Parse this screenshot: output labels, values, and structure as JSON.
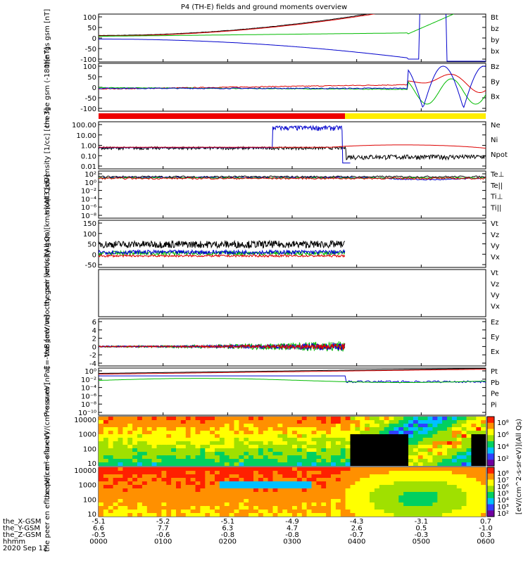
{
  "chart_data": {
    "type": "line",
    "title": "P4 (TH-E) fields and ground moments overview",
    "date_label": "2020 Sep 12",
    "x_ticks": [
      "0000",
      "0100",
      "0200",
      "0300",
      "0400",
      "0500",
      "0600"
    ],
    "bottom_rows": [
      {
        "label": "the_X-GSM",
        "values": [
          "-5.1",
          "-5.2",
          "-5.1",
          "-4.9",
          "-4.3",
          "-3.1",
          "0.7"
        ]
      },
      {
        "label": "the_Y-GSM",
        "values": [
          "6.6",
          "7.7",
          "6.3",
          "4.7",
          "2.6",
          "0.5",
          "-1.0"
        ]
      },
      {
        "label": "the_Z-GSM",
        "values": [
          "-0.5",
          "-0.6",
          "-0.8",
          "-0.8",
          "-0.7",
          "-0.3",
          "0.3"
        ]
      },
      {
        "label": "hhmm",
        "values": [
          "0000",
          "0100",
          "0200",
          "0300",
          "0400",
          "0500",
          "0600"
        ]
      }
    ],
    "panels": [
      {
        "id": "fgs",
        "ylabel": "the fgs gsm [nT]",
        "yticks": [
          "100",
          "50",
          "0",
          "-50",
          "-100"
        ],
        "legend": [
          {
            "name": "Bt",
            "color": "#000000"
          },
          {
            "name": "bz",
            "color": "#dd0000"
          },
          {
            "name": "by",
            "color": "#00bb00"
          },
          {
            "name": "bx",
            "color": "#0000cc"
          }
        ]
      },
      {
        "id": "fge",
        "ylabel": "the fge gsm (-180)[nT]",
        "yticks": [
          "100",
          "50",
          "0",
          "-50",
          "-100"
        ],
        "legend": [
          {
            "name": "Bz",
            "color": "#dd0000"
          },
          {
            "name": "By",
            "color": "#00bb00"
          },
          {
            "name": "Bx",
            "color": "#0000cc"
          }
        ]
      },
      {
        "id": "density",
        "ylabel": "Density [1/cc] [cm-3]",
        "yticks": [
          "100.00",
          "10.00",
          "1.00",
          "0.10",
          "0.01"
        ],
        "legend": [
          {
            "name": "Ne",
            "color": "#dd0000"
          },
          {
            "name": "Ni",
            "color": "#000000"
          },
          {
            "name": "Npot",
            "color": "#0000cc"
          }
        ]
      },
      {
        "id": "temp",
        "ylabel": "moqt3 [eV]",
        "yticks": [
          "10²",
          "10⁰",
          "10⁻²",
          "10⁻⁴",
          "10⁻⁶",
          "10⁻⁸"
        ],
        "legend": [
          {
            "name": "Te⊥",
            "color": "#dd0000"
          },
          {
            "name": "Te||",
            "color": "#000000"
          },
          {
            "name": "Ti⊥",
            "color": "#0000cc"
          },
          {
            "name": "Ti||",
            "color": "#00bb00"
          }
        ]
      },
      {
        "id": "peir",
        "ylabel": "the peir velocity gsm [km/s](All Qs)",
        "yticks": [
          "150",
          "100",
          "50",
          "0",
          "-50"
        ],
        "legend": [
          {
            "name": "Vt",
            "color": "#000000"
          },
          {
            "name": "Vz",
            "color": "#dd0000"
          },
          {
            "name": "Vy",
            "color": "#00bb00"
          },
          {
            "name": "Vx",
            "color": "#0000cc"
          }
        ]
      },
      {
        "id": "peer",
        "ylabel": "the peer velocity gsm [km/s](All Qs)",
        "yticks": [],
        "legend": [
          {
            "name": "Vt",
            "color": "#000000"
          },
          {
            "name": "Vz",
            "color": "#dd0000"
          },
          {
            "name": "Vy",
            "color": "#00bb00"
          },
          {
            "name": "Vx",
            "color": "#0000cc"
          }
        ]
      },
      {
        "id": "efield",
        "ylabel": "E=-VxB [mV/m]",
        "yticks": [
          "6",
          "4",
          "2",
          "0",
          "-2",
          "-4"
        ],
        "legend": [
          {
            "name": "Ez",
            "color": "#dd0000"
          },
          {
            "name": "Ey",
            "color": "#00bb00"
          },
          {
            "name": "Ex",
            "color": "#0000cc"
          }
        ]
      },
      {
        "id": "pressure",
        "ylabel": "Pressure [nPa]",
        "yticks": [
          "10⁰",
          "10⁻²",
          "10⁻⁴",
          "10⁻⁶",
          "10⁻⁸",
          "10⁻¹⁰"
        ],
        "legend": [
          {
            "name": "Pt",
            "color": "#000000"
          },
          {
            "name": "Pb",
            "color": "#dd0000"
          },
          {
            "name": "Pe",
            "color": "#00bb00"
          },
          {
            "name": "Pi",
            "color": "#0000cc"
          }
        ]
      },
      {
        "id": "peir_spec",
        "ylabel": "the peir en eflux eV/(cm²-s-sr-eV)",
        "yticks": [
          "10000",
          "1000",
          "100",
          "10"
        ],
        "legend": []
      },
      {
        "id": "peer_spec",
        "ylabel": "the peer en eflux eV/(cm²-s-sr-eV)",
        "yticks": [
          "10000",
          "1000",
          "100",
          "10"
        ],
        "legend": []
      }
    ],
    "colorbar": {
      "label": "[eV/(cm^2-s-sr-eV)](All Qs)",
      "ticks_top": [
        "10⁸",
        "10⁶",
        "10⁴",
        "10²"
      ],
      "ticks_bottom": [
        "10⁸",
        "10⁷",
        "10⁶",
        "10⁵",
        "10⁴",
        "10³",
        "10²"
      ]
    },
    "mode_bar": {
      "colors": [
        "#ee0000",
        "#ffee00"
      ]
    }
  }
}
